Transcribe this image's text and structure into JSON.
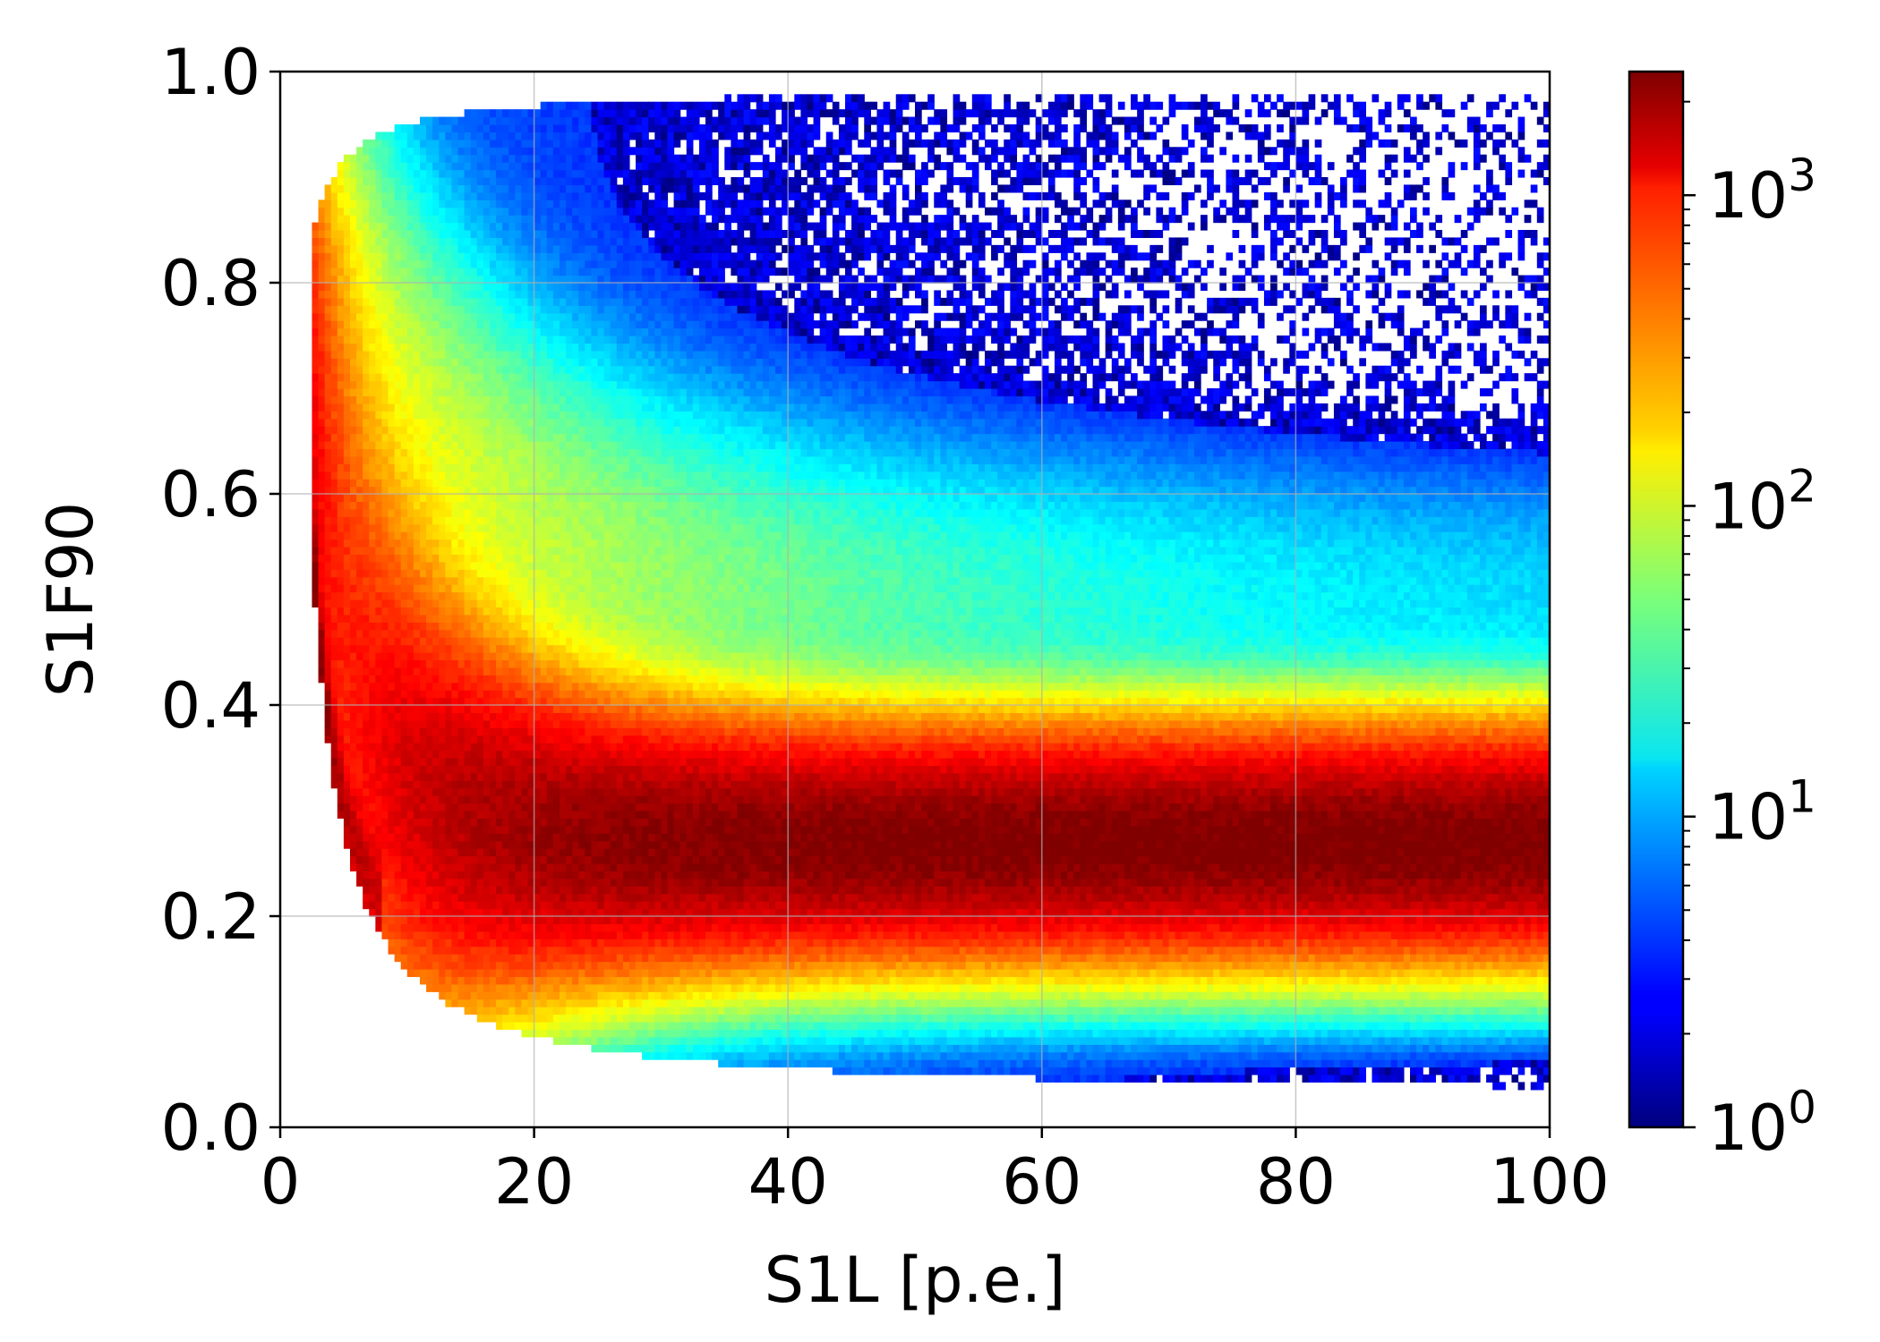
{
  "chart_data": {
    "type": "heatmap",
    "title": "",
    "xlabel": "S1L [p.e.]",
    "ylabel": "S1F90",
    "xlim": [
      0,
      100
    ],
    "ylim": [
      0.0,
      1.0
    ],
    "x_ticks": [
      0,
      20,
      40,
      60,
      80,
      100
    ],
    "x_tick_labels": [
      "0",
      "20",
      "40",
      "60",
      "80",
      "100"
    ],
    "y_ticks": [
      0.0,
      0.2,
      0.4,
      0.6,
      0.8,
      1.0
    ],
    "y_tick_labels": [
      "0.0",
      "0.2",
      "0.4",
      "0.6",
      "0.8",
      "1.0"
    ],
    "grid": true,
    "colormap": "jet",
    "colorbar": {
      "scale": "log",
      "range": [
        1,
        2500
      ],
      "ticks": [
        1,
        10,
        100,
        1000
      ],
      "labels": [
        {
          "base": "10",
          "exp": "0"
        },
        {
          "base": "10",
          "exp": "1"
        },
        {
          "base": "10",
          "exp": "2"
        },
        {
          "base": "10",
          "exp": "3"
        }
      ]
    },
    "band_description_points": {
      "nuclear_recoil_band_center": [
        [
          5,
          0.45
        ],
        [
          10,
          0.55
        ],
        [
          20,
          0.6
        ],
        [
          40,
          0.55
        ],
        [
          60,
          0.52
        ],
        [
          80,
          0.5
        ],
        [
          100,
          0.5
        ]
      ],
      "electron_recoil_band_center": [
        [
          5,
          0.35
        ],
        [
          10,
          0.32
        ],
        [
          20,
          0.32
        ],
        [
          30,
          0.3
        ],
        [
          40,
          0.3
        ],
        [
          60,
          0.29
        ],
        [
          80,
          0.285
        ],
        [
          100,
          0.28
        ]
      ],
      "peak_counts_approx": 2500,
      "min_s1l_edge": [
        [
          2.5,
          0.88
        ],
        [
          4,
          0.5
        ],
        [
          6,
          0.3
        ],
        [
          10,
          0.2
        ],
        [
          20,
          0.1
        ],
        [
          40,
          0.05
        ],
        [
          100,
          0.03
        ]
      ]
    }
  }
}
